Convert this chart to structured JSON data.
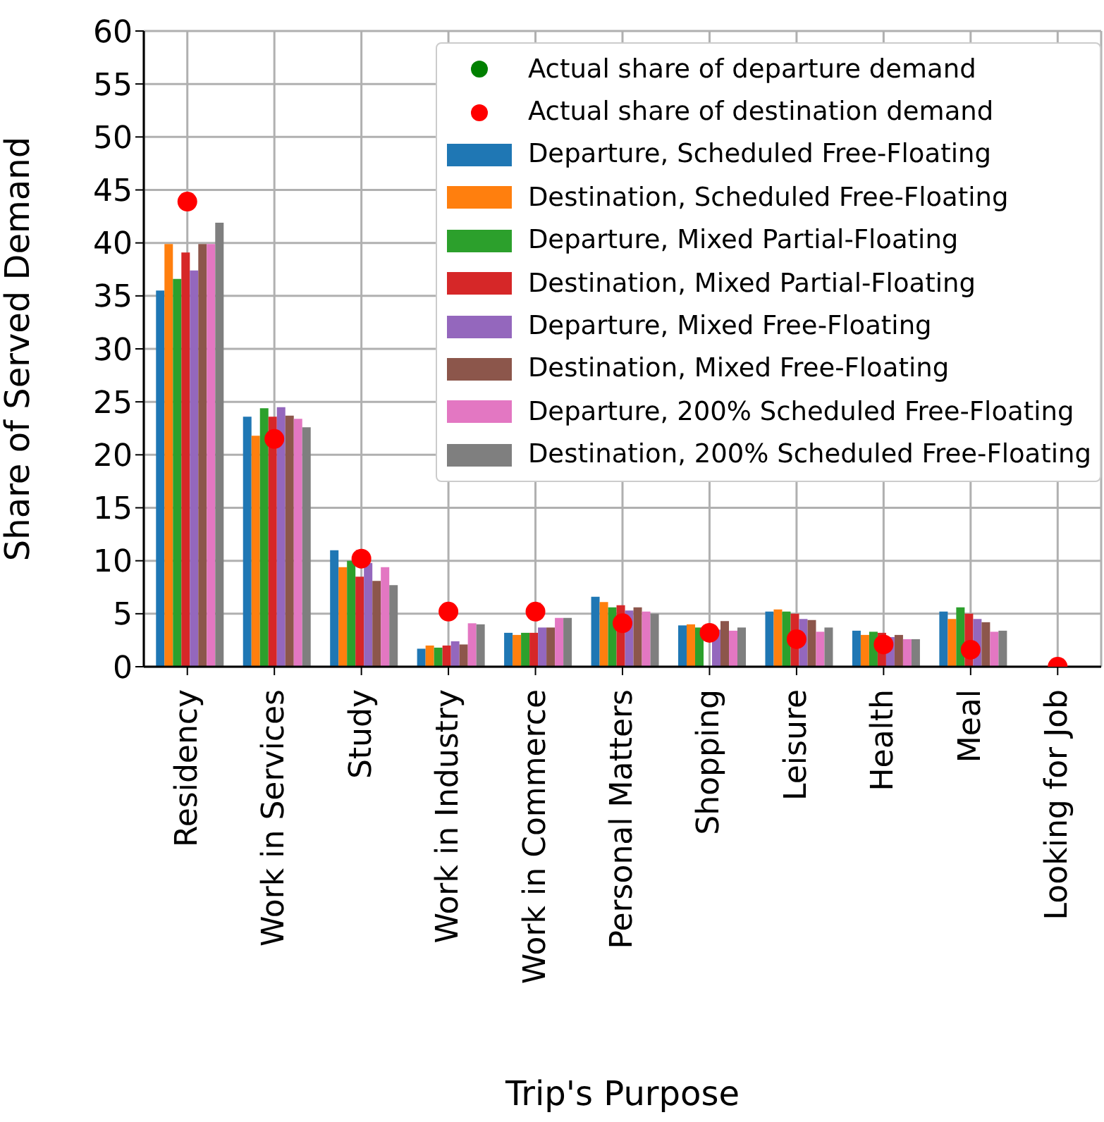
{
  "chart_data": {
    "type": "bar",
    "xlabel": "Trip's Purpose",
    "ylabel": "Share of Served Demand",
    "categories": [
      "Residency",
      "Work in Services",
      "Study",
      "Work in Industry",
      "Work in Commerce",
      "Personal Matters",
      "Shopping",
      "Leisure",
      "Health",
      "Meal",
      "Looking for Job"
    ],
    "ylim": [
      0,
      60
    ],
    "yticks": [
      0,
      5,
      10,
      15,
      20,
      25,
      30,
      35,
      40,
      45,
      50,
      55,
      60
    ],
    "grid": true,
    "legend": "top right",
    "marker": "circle",
    "series": [
      {
        "name": "Actual share of departure demand",
        "type": "scatter",
        "color": "#008000",
        "values": [
          null,
          null,
          null,
          null,
          null,
          null,
          null,
          null,
          null,
          null,
          null
        ]
      },
      {
        "name": "Actual share of destination demand",
        "type": "scatter",
        "color": "#ff0000",
        "values": [
          43.9,
          21.5,
          10.2,
          5.2,
          5.2,
          4.1,
          3.2,
          2.6,
          2.1,
          1.6,
          0
        ]
      },
      {
        "name": "Departure, Scheduled Free-Floating",
        "color": "#1f77b4",
        "values": [
          35.5,
          23.6,
          11.0,
          1.7,
          3.2,
          6.6,
          3.9,
          5.2,
          3.4,
          5.2,
          0
        ]
      },
      {
        "name": "Destination, Scheduled Free-Floating",
        "color": "#ff7f0e",
        "values": [
          39.9,
          21.8,
          9.4,
          2.0,
          3.0,
          6.1,
          4.0,
          5.4,
          3.0,
          4.5,
          0
        ]
      },
      {
        "name": "Departure, Mixed Partial-Floating",
        "color": "#2ca02c",
        "values": [
          36.6,
          24.4,
          10.0,
          1.8,
          3.2,
          5.6,
          3.7,
          5.2,
          3.3,
          5.6,
          0
        ]
      },
      {
        "name": "Destination, Mixed Partial-Floating",
        "color": "#d62728",
        "values": [
          39.1,
          23.6,
          8.5,
          2.0,
          3.2,
          5.8,
          null,
          5.0,
          3.2,
          5.0,
          0
        ]
      },
      {
        "name": "Departure, Mixed Free-Floating",
        "color": "#9467bd",
        "values": [
          37.4,
          24.5,
          9.8,
          2.4,
          3.7,
          5.3,
          3.5,
          4.5,
          2.8,
          4.5,
          0
        ]
      },
      {
        "name": "Destination, Mixed Free-Floating",
        "color": "#8c564b",
        "values": [
          39.9,
          23.7,
          8.1,
          2.1,
          3.7,
          5.6,
          4.3,
          4.4,
          3.0,
          4.2,
          0
        ]
      },
      {
        "name": "Departure, 200% Scheduled Free-Floating",
        "color": "#e377c2",
        "values": [
          39.9,
          23.4,
          9.4,
          4.1,
          4.6,
          5.2,
          3.4,
          3.3,
          2.6,
          3.3,
          0
        ]
      },
      {
        "name": "Destination, 200% Scheduled Free-Floating",
        "color": "#7f7f7f",
        "values": [
          41.9,
          22.6,
          7.7,
          4.0,
          4.6,
          5.0,
          3.7,
          3.7,
          2.6,
          3.4,
          0
        ]
      }
    ]
  }
}
